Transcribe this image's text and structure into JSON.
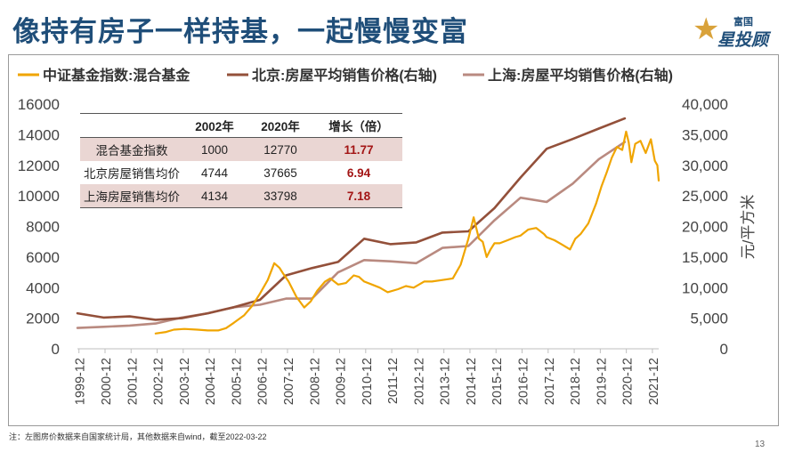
{
  "title": "像持有房子一样持基，一起慢慢变富",
  "logo": {
    "small": "富国",
    "big": "星投顾"
  },
  "footnote": "注：左图房价数据来自国家统计局，其他数据来自wind，截至2022-03-22",
  "page_number": "13",
  "table": {
    "headers": [
      "",
      "2002年",
      "2020年",
      "增长（倍）"
    ],
    "rows": [
      [
        "混合基金指数",
        "1000",
        "12770",
        "11.77"
      ],
      [
        "北京房屋销售均价",
        "4744",
        "37665",
        "6.94"
      ],
      [
        "上海房屋销售均价",
        "4134",
        "33798",
        "7.18"
      ]
    ]
  },
  "chart_data": {
    "type": "line",
    "ylabel_right": "元/平方米",
    "x_ticks": [
      "1999-12",
      "2000-12",
      "2001-12",
      "2002-12",
      "2003-12",
      "2004-12",
      "2005-12",
      "2006-12",
      "2007-12",
      "2008-12",
      "2009-12",
      "2010-12",
      "2011-12",
      "2012-12",
      "2013-12",
      "2014-12",
      "2015-12",
      "2016-12",
      "2017-12",
      "2018-12",
      "2019-12",
      "2020-12",
      "2021-12"
    ],
    "y_left": {
      "min": 0,
      "max": 16000,
      "ticks": [
        "0",
        "2000",
        "4000",
        "6000",
        "8000",
        "10000",
        "12000",
        "14000",
        "16000"
      ]
    },
    "y_right": {
      "min": 0,
      "max": 40000,
      "ticks": [
        "0",
        "5,000",
        "10,000",
        "15,000",
        "20,000",
        "25,000",
        "30,000",
        "35,000",
        "40,000"
      ]
    },
    "legend_position": "top",
    "colors": {
      "fund": "#f0a500",
      "beijing": "#93503a",
      "shanghai": "#b98a80",
      "tick": "#444444",
      "axis": "#bfbfbf"
    },
    "series": [
      {
        "name": "中证基金指数:混合基金",
        "axis": "left",
        "x": [
          2002.9,
          2003.3,
          2003.6,
          2004.0,
          2004.5,
          2004.9,
          2005.3,
          2005.6,
          2005.9,
          2006.3,
          2006.6,
          2006.9,
          2007.2,
          2007.45,
          2007.65,
          2007.8,
          2008.0,
          2008.3,
          2008.6,
          2008.85,
          2009.1,
          2009.4,
          2009.6,
          2009.9,
          2010.2,
          2010.5,
          2010.7,
          2010.9,
          2011.2,
          2011.5,
          2011.8,
          2012.2,
          2012.5,
          2012.8,
          2013.2,
          2013.5,
          2013.9,
          2014.3,
          2014.6,
          2014.9,
          2015.1,
          2015.3,
          2015.45,
          2015.6,
          2015.75,
          2015.9,
          2016.1,
          2016.4,
          2016.7,
          2016.9,
          2017.2,
          2017.5,
          2017.8,
          2017.9,
          2018.2,
          2018.5,
          2018.8,
          2019.0,
          2019.2,
          2019.5,
          2019.8,
          2020.0,
          2020.2,
          2020.4,
          2020.6,
          2020.8,
          2020.95,
          2021.05,
          2021.15,
          2021.3,
          2021.5,
          2021.7,
          2021.9,
          2022.05,
          2022.15,
          2022.2
        ],
        "values": [
          1000,
          1100,
          1250,
          1300,
          1250,
          1200,
          1200,
          1350,
          1700,
          2200,
          2800,
          3600,
          4500,
          5600,
          5300,
          4900,
          4400,
          3400,
          2700,
          3100,
          3800,
          4400,
          4600,
          4200,
          4300,
          4800,
          4700,
          4400,
          4200,
          4000,
          3700,
          3900,
          4100,
          4000,
          4400,
          4400,
          4500,
          4600,
          5500,
          7200,
          8600,
          7200,
          7000,
          6000,
          6500,
          6900,
          6900,
          7100,
          7300,
          7400,
          7800,
          7900,
          7500,
          7300,
          7100,
          6800,
          6500,
          7200,
          7500,
          8200,
          9500,
          10600,
          11500,
          12500,
          13200,
          13000,
          14200,
          13500,
          12200,
          13400,
          13600,
          12800,
          13700,
          12300,
          12000,
          11000
        ]
      },
      {
        "name": "北京:房屋平均销售价格(右轴)",
        "axis": "right",
        "x": [
          1999.9,
          2000.9,
          2001.9,
          2002.9,
          2003.9,
          2004.9,
          2005.9,
          2006.9,
          2007.9,
          2008.9,
          2009.9,
          2010.9,
          2011.9,
          2012.9,
          2013.9,
          2014.9,
          2015.9,
          2016.9,
          2017.9,
          2018.9,
          2019.9,
          2020.9
        ],
        "values": [
          5800,
          5100,
          5300,
          4744,
          5000,
          5800,
          6800,
          8000,
          12000,
          13200,
          14200,
          18000,
          17100,
          17400,
          19000,
          19200,
          23000,
          28000,
          32700,
          34300,
          36000,
          37665
        ]
      },
      {
        "name": "上海:房屋平均销售价格(右轴)",
        "axis": "right",
        "x": [
          1999.9,
          2000.9,
          2001.9,
          2002.9,
          2003.9,
          2004.9,
          2005.9,
          2006.9,
          2007.9,
          2008.9,
          2009.9,
          2010.9,
          2011.9,
          2012.9,
          2013.9,
          2014.9,
          2015.9,
          2016.9,
          2017.9,
          2018.9,
          2019.9,
          2020.9
        ],
        "values": [
          3400,
          3600,
          3800,
          4134,
          5100,
          5800,
          6800,
          7200,
          8200,
          8200,
          12500,
          14500,
          14300,
          14000,
          16500,
          16800,
          21000,
          24700,
          24000,
          27000,
          31000,
          33798
        ]
      }
    ]
  }
}
